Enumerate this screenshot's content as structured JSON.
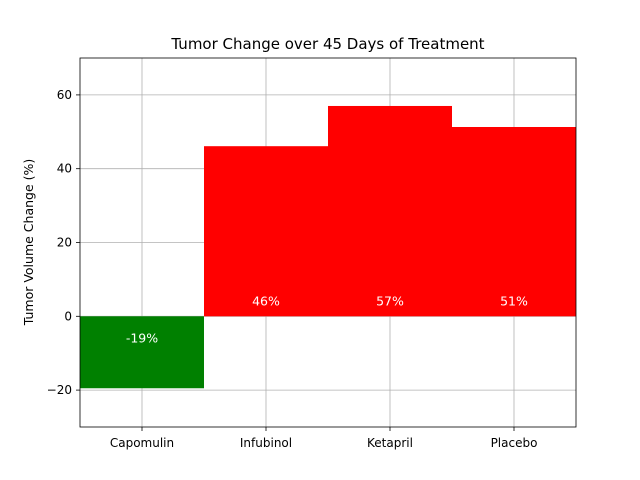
{
  "chart_data": {
    "type": "bar",
    "title": "Tumor Change over 45 Days of Treatment",
    "xlabel": "",
    "ylabel": "Tumor Volume Change (%)",
    "categories": [
      "Capomulin",
      "Infubinol",
      "Ketapril",
      "Placebo"
    ],
    "values": [
      -19.5,
      46.1,
      57.0,
      51.3
    ],
    "data_labels": [
      "-19%",
      "46%",
      "57%",
      "51%"
    ],
    "bar_colors": [
      "#008000",
      "#ff0000",
      "#ff0000",
      "#ff0000"
    ],
    "ylim": [
      -30,
      70
    ],
    "yticks": [
      -20,
      0,
      20,
      40,
      60
    ],
    "ytick_labels": [
      "−20",
      "0",
      "20",
      "40",
      "60"
    ],
    "grid": true,
    "legend": "none"
  }
}
